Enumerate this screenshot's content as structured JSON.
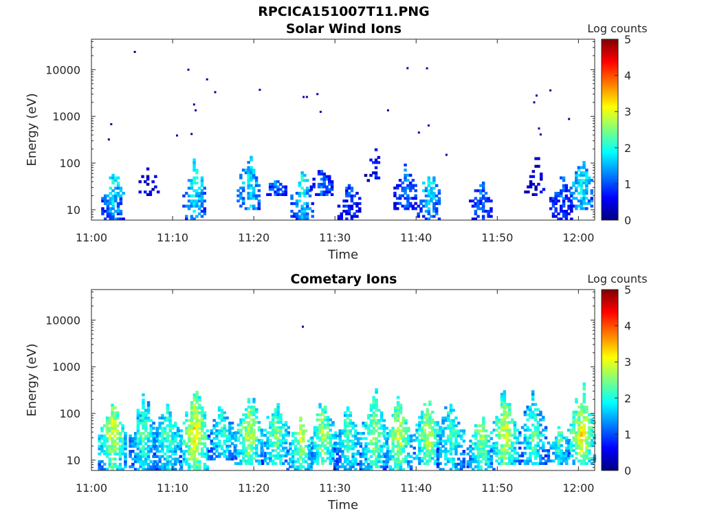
{
  "figure": {
    "title": "RPCICA151007T11.PNG"
  },
  "colormap": [
    "#00007f",
    "#0000ff",
    "#007fff",
    "#00ffff",
    "#7fff7f",
    "#ffff00",
    "#ff7f00",
    "#ff0000",
    "#7f0000"
  ],
  "chart_data": [
    {
      "type": "heatmap",
      "title": "Solar Wind Ions",
      "xlabel": "Time",
      "ylabel": "Energy (eV)",
      "y_scale": "log",
      "xlim": [
        "11:00",
        "12:02"
      ],
      "ylim": [
        6,
        45000
      ],
      "x_ticks": [
        "11:00",
        "11:10",
        "11:20",
        "11:30",
        "11:40",
        "11:50",
        "12:00"
      ],
      "y_ticks": [
        "10",
        "100",
        "1000",
        "10000"
      ],
      "colorbar": {
        "label": "Log counts",
        "min": 0,
        "max": 5,
        "ticks": [
          "0",
          "1",
          "2",
          "3",
          "4",
          "5"
        ]
      },
      "bursts": [
        {
          "t": 2.6,
          "e_min": 6,
          "e_max": 80,
          "mode": "low",
          "peak": 1.9
        },
        {
          "t": 7.0,
          "e_min": 20,
          "e_max": 100,
          "mode": "sparse",
          "peak": 0.5
        },
        {
          "t": 12.6,
          "e_min": 6,
          "e_max": 150,
          "mode": "low",
          "peak": 2.1
        },
        {
          "t": 19.3,
          "e_min": 10,
          "e_max": 200,
          "mode": "low",
          "peak": 1.9
        },
        {
          "t": 22.6,
          "e_min": 20,
          "e_max": 50,
          "mode": "low",
          "peak": 1.2
        },
        {
          "t": 25.9,
          "e_min": 6,
          "e_max": 90,
          "mode": "low",
          "peak": 2.0
        },
        {
          "t": 28.3,
          "e_min": 20,
          "e_max": 90,
          "mode": "low",
          "peak": 1.2
        },
        {
          "t": 31.7,
          "e_min": 6,
          "e_max": 50,
          "mode": "low",
          "peak": 1.0
        },
        {
          "t": 34.8,
          "e_min": 40,
          "e_max": 220,
          "mode": "sparse",
          "peak": 0.7
        },
        {
          "t": 38.6,
          "e_min": 10,
          "e_max": 110,
          "mode": "low",
          "peak": 1.3
        },
        {
          "t": 41.5,
          "e_min": 6,
          "e_max": 110,
          "mode": "low",
          "peak": 1.9
        },
        {
          "t": 47.9,
          "e_min": 6,
          "e_max": 50,
          "mode": "low",
          "peak": 1.3
        },
        {
          "t": 54.5,
          "e_min": 20,
          "e_max": 200,
          "mode": "sparse",
          "peak": 0.6
        },
        {
          "t": 57.8,
          "e_min": 6,
          "e_max": 60,
          "mode": "low",
          "peak": 1.2
        },
        {
          "t": 60.3,
          "e_min": 10,
          "e_max": 170,
          "mode": "low",
          "peak": 2.0
        }
      ],
      "scatter": [
        {
          "t": 2.1,
          "e": 320
        },
        {
          "t": 2.4,
          "e": 680
        },
        {
          "t": 5.3,
          "e": 24000
        },
        {
          "t": 10.5,
          "e": 390
        },
        {
          "t": 11.9,
          "e": 10000
        },
        {
          "t": 12.3,
          "e": 420
        },
        {
          "t": 12.6,
          "e": 1800
        },
        {
          "t": 12.8,
          "e": 1350
        },
        {
          "t": 14.2,
          "e": 6200
        },
        {
          "t": 15.2,
          "e": 3300
        },
        {
          "t": 20.7,
          "e": 3700
        },
        {
          "t": 26.1,
          "e": 2600
        },
        {
          "t": 26.5,
          "e": 2600
        },
        {
          "t": 27.8,
          "e": 3000
        },
        {
          "t": 28.2,
          "e": 1250
        },
        {
          "t": 36.5,
          "e": 1350
        },
        {
          "t": 38.9,
          "e": 10800
        },
        {
          "t": 40.3,
          "e": 450
        },
        {
          "t": 41.3,
          "e": 10700
        },
        {
          "t": 41.5,
          "e": 640
        },
        {
          "t": 43.7,
          "e": 150
        },
        {
          "t": 54.5,
          "e": 2000
        },
        {
          "t": 54.8,
          "e": 2800
        },
        {
          "t": 55.1,
          "e": 550
        },
        {
          "t": 55.3,
          "e": 410
        },
        {
          "t": 56.5,
          "e": 3600
        },
        {
          "t": 58.8,
          "e": 880
        }
      ]
    },
    {
      "type": "heatmap",
      "title": "Cometary Ions",
      "xlabel": "Time",
      "ylabel": "Energy (eV)",
      "y_scale": "log",
      "xlim": [
        "11:00",
        "12:02"
      ],
      "ylim": [
        6,
        45000
      ],
      "x_ticks": [
        "11:00",
        "11:10",
        "11:20",
        "11:30",
        "11:40",
        "11:50",
        "12:00"
      ],
      "y_ticks": [
        "10",
        "100",
        "1000",
        "10000"
      ],
      "colorbar": {
        "label": "Log counts",
        "min": 0,
        "max": 5,
        "ticks": [
          "0",
          "1",
          "2",
          "3",
          "4",
          "5"
        ]
      },
      "bursts": [
        {
          "t": 2.5,
          "e_min": 6,
          "e_max": 350,
          "mode": "full",
          "peak": 3.1
        },
        {
          "t": 6.3,
          "e_min": 6,
          "e_max": 420,
          "mode": "full",
          "peak": 2.4
        },
        {
          "t": 9.3,
          "e_min": 6,
          "e_max": 300,
          "mode": "full",
          "peak": 2.4
        },
        {
          "t": 12.6,
          "e_min": 6,
          "e_max": 600,
          "mode": "full",
          "peak": 3.4
        },
        {
          "t": 16.0,
          "e_min": 10,
          "e_max": 200,
          "mode": "full",
          "peak": 2.2
        },
        {
          "t": 19.3,
          "e_min": 8,
          "e_max": 400,
          "mode": "full",
          "peak": 3.0
        },
        {
          "t": 22.6,
          "e_min": 8,
          "e_max": 300,
          "mode": "full",
          "peak": 2.6
        },
        {
          "t": 25.7,
          "e_min": 6,
          "e_max": 100,
          "mode": "full",
          "peak": 3.0
        },
        {
          "t": 28.4,
          "e_min": 8,
          "e_max": 280,
          "mode": "full",
          "peak": 2.8
        },
        {
          "t": 31.5,
          "e_min": 6,
          "e_max": 200,
          "mode": "full",
          "peak": 2.4
        },
        {
          "t": 34.7,
          "e_min": 6,
          "e_max": 520,
          "mode": "full",
          "peak": 2.8
        },
        {
          "t": 37.7,
          "e_min": 6,
          "e_max": 250,
          "mode": "full",
          "peak": 3.0
        },
        {
          "t": 41.3,
          "e_min": 8,
          "e_max": 300,
          "mode": "full",
          "peak": 2.9
        },
        {
          "t": 44.2,
          "e_min": 6,
          "e_max": 340,
          "mode": "full",
          "peak": 2.4
        },
        {
          "t": 47.9,
          "e_min": 6,
          "e_max": 120,
          "mode": "full",
          "peak": 2.8
        },
        {
          "t": 50.8,
          "e_min": 8,
          "e_max": 460,
          "mode": "full",
          "peak": 3.1
        },
        {
          "t": 54.3,
          "e_min": 8,
          "e_max": 460,
          "mode": "full",
          "peak": 2.4
        },
        {
          "t": 57.5,
          "e_min": 8,
          "e_max": 60,
          "mode": "full",
          "peak": 2.3
        },
        {
          "t": 60.3,
          "e_min": 8,
          "e_max": 600,
          "mode": "full",
          "peak": 3.3
        }
      ],
      "scatter": [
        {
          "t": 26.0,
          "e": 7200
        }
      ]
    }
  ]
}
